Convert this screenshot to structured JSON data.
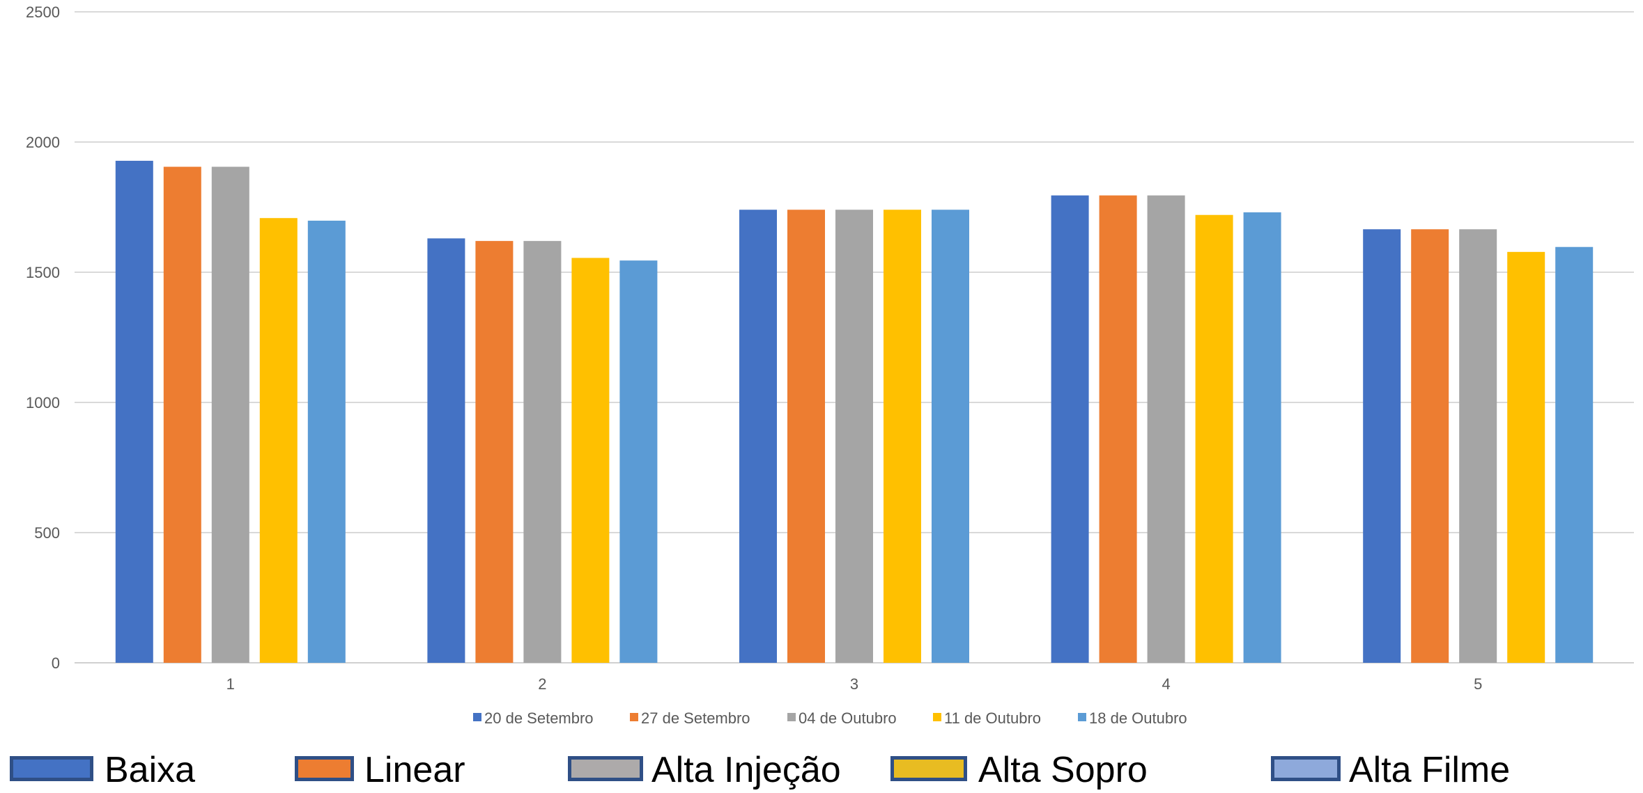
{
  "chart_data": {
    "type": "bar",
    "categories": [
      "1",
      "2",
      "3",
      "4",
      "5"
    ],
    "series": [
      {
        "name": "20 de Setembro",
        "color": "#4472C4",
        "values": [
          1928,
          1630,
          1740,
          1795,
          1665
        ]
      },
      {
        "name": "27 de Setembro",
        "color": "#ED7D31",
        "values": [
          1905,
          1620,
          1740,
          1795,
          1665
        ]
      },
      {
        "name": "04 de Outubro",
        "color": "#A5A5A5",
        "values": [
          1905,
          1620,
          1740,
          1795,
          1665
        ]
      },
      {
        "name": "11 de Outubro",
        "color": "#FFC000",
        "values": [
          1708,
          1555,
          1740,
          1720,
          1578
        ]
      },
      {
        "name": "18 de Outubro",
        "color": "#5B9BD5",
        "values": [
          1698,
          1545,
          1740,
          1730,
          1597
        ]
      }
    ],
    "ylim": [
      0,
      2500
    ],
    "yticks": [
      "0",
      "500",
      "1000",
      "1500",
      "2000",
      "2500"
    ],
    "grid": true,
    "legend_position": "bottom"
  },
  "bottom_legend": [
    {
      "label": "Baixa",
      "color": "#4472C4"
    },
    {
      "label": "Linear",
      "color": "#ED7D31"
    },
    {
      "label": "Alta Injeção",
      "color": "#ADAAAA"
    },
    {
      "label": "Alta Sopro",
      "color": "#E8BC22"
    },
    {
      "label": "Alta Filme",
      "color": "#8EA9DB"
    }
  ]
}
